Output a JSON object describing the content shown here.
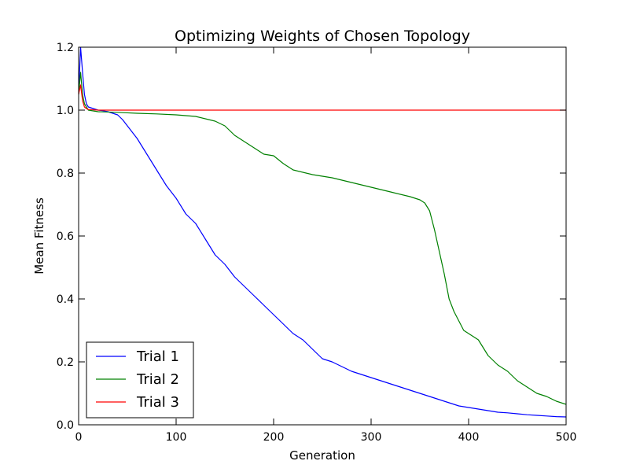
{
  "chart_data": {
    "type": "line",
    "title": "Optimizing Weights of Chosen Topology",
    "xlabel": "Generation",
    "ylabel": "Mean Fitness",
    "xlim": [
      0,
      500
    ],
    "ylim": [
      0.0,
      1.2
    ],
    "xticks": [
      0,
      100,
      200,
      300,
      400,
      500
    ],
    "xtick_labels": [
      "0",
      "100",
      "200",
      "300",
      "400",
      "500"
    ],
    "yticks": [
      0.0,
      0.2,
      0.4,
      0.6,
      0.8,
      1.0,
      1.2
    ],
    "ytick_labels": [
      "0.0",
      "0.2",
      "0.4",
      "0.6",
      "0.8",
      "1.0",
      "1.2"
    ],
    "grid": false,
    "legend_position": "lower-left",
    "series": [
      {
        "name": "Trial 1",
        "color": "#0000ff",
        "x": [
          0,
          2,
          4,
          6,
          8,
          10,
          15,
          20,
          25,
          30,
          35,
          40,
          45,
          50,
          60,
          70,
          80,
          90,
          100,
          110,
          120,
          130,
          140,
          150,
          160,
          170,
          180,
          190,
          200,
          210,
          220,
          230,
          240,
          250,
          260,
          270,
          280,
          290,
          300,
          310,
          320,
          330,
          340,
          350,
          360,
          370,
          380,
          390,
          400,
          410,
          420,
          430,
          440,
          450,
          460,
          470,
          480,
          490,
          500
        ],
        "y": [
          1.05,
          1.2,
          1.12,
          1.05,
          1.02,
          1.01,
          1.005,
          1.0,
          0.998,
          0.995,
          0.99,
          0.985,
          0.97,
          0.95,
          0.91,
          0.86,
          0.81,
          0.76,
          0.72,
          0.67,
          0.64,
          0.59,
          0.54,
          0.51,
          0.47,
          0.44,
          0.41,
          0.38,
          0.35,
          0.32,
          0.29,
          0.27,
          0.24,
          0.21,
          0.2,
          0.185,
          0.17,
          0.16,
          0.15,
          0.14,
          0.13,
          0.12,
          0.11,
          0.1,
          0.09,
          0.08,
          0.07,
          0.06,
          0.055,
          0.05,
          0.045,
          0.04,
          0.038,
          0.035,
          0.032,
          0.03,
          0.028,
          0.026,
          0.025
        ]
      },
      {
        "name": "Trial 2",
        "color": "#008000",
        "x": [
          0,
          2,
          4,
          6,
          8,
          10,
          20,
          40,
          60,
          80,
          100,
          120,
          140,
          150,
          160,
          170,
          180,
          190,
          200,
          210,
          220,
          240,
          260,
          280,
          300,
          320,
          340,
          350,
          355,
          360,
          365,
          370,
          375,
          380,
          385,
          390,
          395,
          400,
          410,
          420,
          430,
          440,
          450,
          460,
          470,
          480,
          490,
          500
        ],
        "y": [
          1.05,
          1.12,
          1.05,
          1.02,
          1.01,
          1.0,
          0.995,
          0.993,
          0.99,
          0.988,
          0.985,
          0.98,
          0.965,
          0.95,
          0.92,
          0.9,
          0.88,
          0.86,
          0.855,
          0.83,
          0.81,
          0.795,
          0.785,
          0.77,
          0.755,
          0.74,
          0.725,
          0.715,
          0.705,
          0.68,
          0.62,
          0.55,
          0.48,
          0.4,
          0.36,
          0.33,
          0.3,
          0.29,
          0.27,
          0.22,
          0.19,
          0.17,
          0.14,
          0.12,
          0.1,
          0.09,
          0.075,
          0.065
        ]
      },
      {
        "name": "Trial 3",
        "color": "#ff0000",
        "x": [
          0,
          2,
          4,
          6,
          8,
          10,
          20,
          50,
          100,
          150,
          200,
          250,
          300,
          350,
          400,
          450,
          500
        ],
        "y": [
          1.05,
          1.08,
          1.03,
          1.01,
          1.005,
          1.002,
          1.0,
          1.0,
          1.0,
          1.0,
          1.0,
          1.0,
          1.0,
          1.0,
          1.0,
          1.0,
          1.0
        ]
      }
    ]
  }
}
